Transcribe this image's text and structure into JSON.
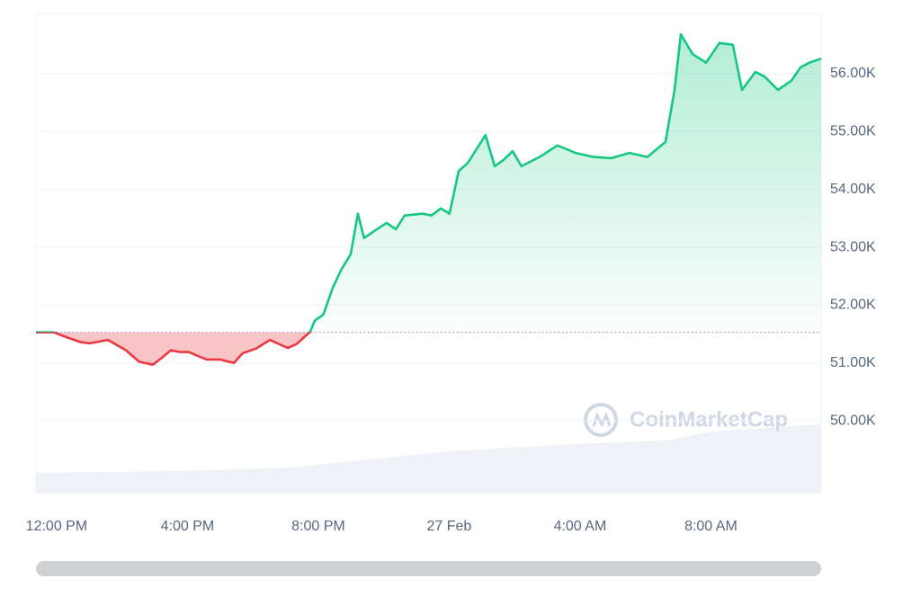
{
  "chart_data": {
    "type": "line",
    "x": [
      11.37,
      11.92,
      12.19,
      12.74,
      13.02,
      13.57,
      14.12,
      14.53,
      14.94,
      15.22,
      15.49,
      15.77,
      16.04,
      16.32,
      16.59,
      17.0,
      17.42,
      17.69,
      18.1,
      18.52,
      18.79,
      19.07,
      19.34,
      19.75,
      19.89,
      20.16,
      20.44,
      20.71,
      20.99,
      21.21,
      21.4,
      21.68,
      22.09,
      22.37,
      22.64,
      23.19,
      23.46,
      23.74,
      24.01,
      24.29,
      24.56,
      25.11,
      25.39,
      25.66,
      25.94,
      26.21,
      26.76,
      27.31,
      27.86,
      28.41,
      28.96,
      29.51,
      30.06,
      30.61,
      30.89,
      31.08,
      31.44,
      31.85,
      32.26,
      32.67,
      32.95,
      33.36,
      33.64,
      34.05,
      34.46,
      34.74,
      35.01,
      35.37
    ],
    "values": [
      51530,
      51530,
      51470,
      51360,
      51340,
      51400,
      51220,
      51020,
      50970,
      51090,
      51220,
      51190,
      51190,
      51120,
      51060,
      51060,
      51000,
      51170,
      51250,
      51400,
      51330,
      51260,
      51330,
      51540,
      51730,
      51840,
      52300,
      52620,
      52880,
      53580,
      53160,
      53270,
      53420,
      53310,
      53550,
      53580,
      53550,
      53670,
      53580,
      54320,
      54450,
      54940,
      54400,
      54510,
      54660,
      54400,
      54560,
      54760,
      54630,
      54560,
      54540,
      54630,
      54560,
      54820,
      55720,
      56680,
      56340,
      56190,
      56530,
      56500,
      55720,
      56030,
      55950,
      55720,
      55880,
      56110,
      56190,
      56260
    ],
    "baseline": 51530,
    "color_up": "#16c784",
    "color_down": "#ea3943",
    "xlim": [
      11.37,
      35.37
    ],
    "xticks": [
      {
        "value": 12,
        "label": "12:00 PM"
      },
      {
        "value": 16,
        "label": "4:00 PM"
      },
      {
        "value": 20,
        "label": "8:00 PM"
      },
      {
        "value": 24,
        "label": "27 Feb"
      },
      {
        "value": 28,
        "label": "4:00 AM"
      },
      {
        "value": 32,
        "label": "8:00 AM"
      }
    ],
    "ylim": [
      48760,
      57040
    ],
    "yticks": [
      {
        "value": 50000,
        "label": "50.00K"
      },
      {
        "value": 51000,
        "label": "51.00K"
      },
      {
        "value": 52000,
        "label": "52.00K"
      },
      {
        "value": 53000,
        "label": "53.00K"
      },
      {
        "value": 54000,
        "label": "54.00K"
      },
      {
        "value": 55000,
        "label": "55.00K"
      },
      {
        "value": 56000,
        "label": "56.00K"
      }
    ],
    "grid": true,
    "watermark": "CoinMarketCap"
  }
}
